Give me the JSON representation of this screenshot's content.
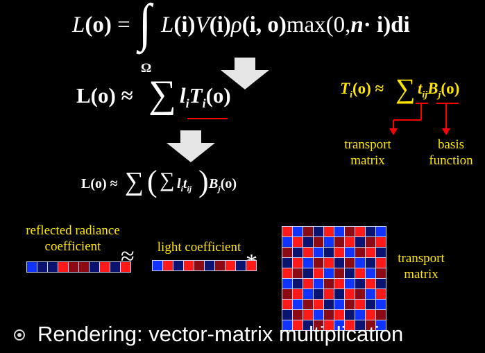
{
  "equations": {
    "main_L": "L",
    "main_o": "(o)",
    "main_eq": "=",
    "integral_sign": "∫",
    "integral_body_1": "L",
    "integral_body_2": "(i)",
    "integral_body_3": "V",
    "integral_body_4": "(i)",
    "integral_body_5": "ρ",
    "integral_body_6": "(i, o)",
    "integral_body_7": "max(0,",
    "integral_body_8": "n",
    "integral_body_9": "· i)di",
    "omega": "Ω",
    "approx1_lhs": "L(o) ≈",
    "approx1_sum": "∑",
    "approx1_l": "l",
    "approx1_l_sub": "i",
    "approx1_T": "T",
    "approx1_T_sub": "i",
    "approx1_rest": "(o)",
    "ti_lhs_T": "T",
    "ti_lhs_sub": "i",
    "ti_lhs_rest": "(o) ≈",
    "ti_sum": "∑",
    "ti_t": "t",
    "ti_t_sub": "ij",
    "ti_B": "B",
    "ti_B_sub": "j",
    "ti_B_rest": "(o)",
    "approx2_lhs": "L(o) ≈",
    "approx2_sum": "∑",
    "approx2_open": "(",
    "approx2_inner_sum": "∑",
    "approx2_l": "l",
    "approx2_l_sub": "i",
    "approx2_t": "t",
    "approx2_t_sub": "ij",
    "approx2_close": ")",
    "approx2_B": "B",
    "approx2_B_sub": "j",
    "approx2_rest": "(o)"
  },
  "labels": {
    "transport_matrix_top_1": "transport",
    "transport_matrix_top_2": "matrix",
    "basis_function_1": "basis",
    "basis_function_2": "function",
    "reflected_1": "reflected radiance",
    "reflected_2": "coefficient",
    "light_coefficient": "light coefficient",
    "transport_matrix_bottom_1": "transport",
    "transport_matrix_bottom_2": "matrix",
    "approx_symbol": "≈",
    "times_symbol": "*"
  },
  "bullet": {
    "text": "Rendering: vector-matrix multiplication"
  },
  "colors": {
    "background": "#000000",
    "label_yellow": "#ffe600",
    "arrow_red": "#ff0000",
    "cell_red": "#ff1a1a",
    "cell_darkred": "#8b0a14",
    "cell_blue": "#1133ff",
    "cell_navy": "#0a1470",
    "grid_line": "#cfd8ff"
  },
  "vectors": {
    "reflected_radiance": [
      "blue",
      "navy",
      "navy",
      "red",
      "darkred",
      "darkred",
      "navy",
      "red",
      "navy",
      "red"
    ],
    "light_coefficient": [
      "blue",
      "red",
      "navy",
      "red",
      "darkred",
      "navy",
      "darkred",
      "red",
      "navy",
      "red"
    ]
  },
  "matrix": [
    [
      "red",
      "blue",
      "darkred",
      "navy",
      "red",
      "blue",
      "darkred",
      "red",
      "navy",
      "blue"
    ],
    [
      "blue",
      "red",
      "navy",
      "darkred",
      "blue",
      "darkred",
      "red",
      "navy",
      "darkred",
      "red"
    ],
    [
      "darkred",
      "navy",
      "red",
      "blue",
      "navy",
      "red",
      "blue",
      "darkred",
      "red",
      "navy"
    ],
    [
      "navy",
      "red",
      "blue",
      "darkred",
      "red",
      "navy",
      "darkred",
      "blue",
      "navy",
      "red"
    ],
    [
      "red",
      "darkred",
      "navy",
      "red",
      "blue",
      "darkred",
      "navy",
      "red",
      "blue",
      "darkred"
    ],
    [
      "blue",
      "navy",
      "red",
      "blue",
      "darkred",
      "red",
      "blue",
      "navy",
      "red",
      "navy"
    ],
    [
      "darkred",
      "red",
      "blue",
      "navy",
      "red",
      "navy",
      "red",
      "darkred",
      "blue",
      "red"
    ],
    [
      "red",
      "blue",
      "darkred",
      "red",
      "navy",
      "blue",
      "darkred",
      "red",
      "navy",
      "blue"
    ],
    [
      "navy",
      "darkred",
      "red",
      "blue",
      "darkred",
      "red",
      "navy",
      "blue",
      "red",
      "darkred"
    ],
    [
      "blue",
      "red",
      "navy",
      "darkred",
      "red",
      "blue",
      "red",
      "navy",
      "darkred",
      "blue"
    ]
  ]
}
